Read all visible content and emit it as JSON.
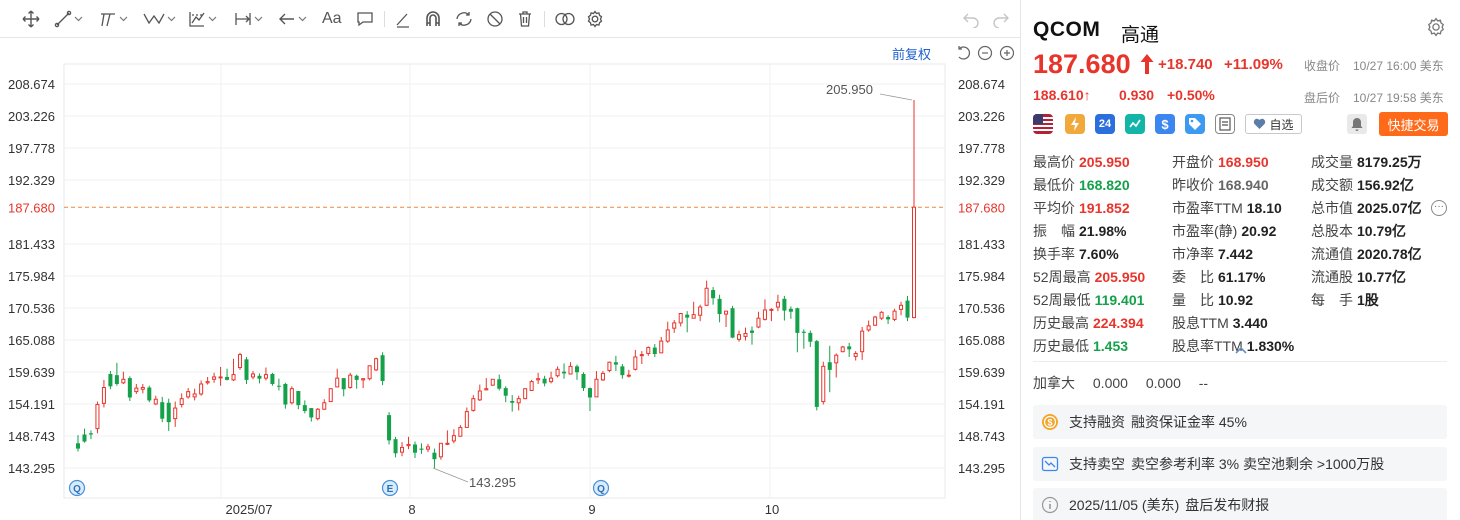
{
  "colors": {
    "up": "#e8352c",
    "down": "#14a14a",
    "accent": "#1f5fcc",
    "trade": "#ff6a1a"
  },
  "toolbar": {
    "icons": [
      "move-icon",
      "line-icon",
      "channel-icon",
      "wave-icon",
      "pattern-icon",
      "measure-icon",
      "arrow-icon",
      "text-icon",
      "comment-icon",
      "pen-icon",
      "magnet-icon",
      "sync-icon",
      "hide-icon",
      "delete-icon",
      "compare-icon",
      "gear-icon",
      "undo-icon",
      "redo-icon"
    ],
    "text_tool_label": "Aa"
  },
  "chart": {
    "adjust_label": "前复权",
    "y_ticks": [
      "208.674",
      "203.226",
      "197.778",
      "192.329",
      "187.680",
      "181.433",
      "175.984",
      "170.536",
      "165.088",
      "159.639",
      "154.191",
      "148.743",
      "143.295"
    ],
    "current_price": "187.680",
    "high_label": "205.950",
    "low_label": "143.295",
    "x_labels": [
      "2025/07",
      "8",
      "9",
      "10"
    ],
    "event_markers": [
      "Q",
      "E",
      "Q"
    ]
  },
  "chart_data": {
    "type": "candlestick",
    "x_labels": [
      "2025/07",
      "8",
      "9",
      "10"
    ],
    "ylim": [
      141,
      211
    ],
    "y_ticks": [
      208.674,
      203.226,
      197.778,
      192.329,
      187.68,
      181.433,
      175.984,
      170.536,
      165.088,
      159.639,
      154.191,
      148.743,
      143.295
    ],
    "reference_line": 187.68,
    "annotations": [
      {
        "text": "205.950",
        "value": 205.95
      },
      {
        "text": "143.295",
        "value": 143.295
      }
    ],
    "candles": [
      [
        147.5,
        146.6,
        148.9,
        146.1
      ],
      [
        149.0,
        147.8,
        150.0,
        147.6
      ],
      [
        149.2,
        149.0,
        149.7,
        148.2
      ],
      [
        150.0,
        154.1,
        154.6,
        149.2
      ],
      [
        154.3,
        157.0,
        158.3,
        153.6
      ],
      [
        159.3,
        157.2,
        159.8,
        156.7
      ],
      [
        159.1,
        157.6,
        161.2,
        157.3
      ],
      [
        157.8,
        158.4,
        159.7,
        157.6
      ],
      [
        158.6,
        155.3,
        158.9,
        154.7
      ],
      [
        156.3,
        156.9,
        157.6,
        155.9
      ],
      [
        156.7,
        157.0,
        157.6,
        156.0
      ],
      [
        157.0,
        154.8,
        157.3,
        154.5
      ],
      [
        154.2,
        155.0,
        155.6,
        154.0
      ],
      [
        154.5,
        151.7,
        155.4,
        151.1
      ],
      [
        154.4,
        151.1,
        155.1,
        149.6
      ],
      [
        151.7,
        153.5,
        154.6,
        150.3
      ],
      [
        154.1,
        155.1,
        156.0,
        153.6
      ],
      [
        155.4,
        156.3,
        156.9,
        155.1
      ],
      [
        155.4,
        155.9,
        156.8,
        154.8
      ],
      [
        155.9,
        157.6,
        158.2,
        155.6
      ],
      [
        157.8,
        158.0,
        158.8,
        157.5
      ],
      [
        158.4,
        158.8,
        159.5,
        157.8
      ],
      [
        158.7,
        158.8,
        160.5,
        157.3
      ],
      [
        158.8,
        158.3,
        160.2,
        158.2
      ],
      [
        158.3,
        159.2,
        161.9,
        158.1
      ],
      [
        160.4,
        162.6,
        162.9,
        160.0
      ],
      [
        161.8,
        158.3,
        162.2,
        157.6
      ],
      [
        158.8,
        159.3,
        159.8,
        158.4
      ],
      [
        159.0,
        158.5,
        159.4,
        157.7
      ],
      [
        158.6,
        159.2,
        160.4,
        158.2
      ],
      [
        159.3,
        157.6,
        159.5,
        157.3
      ],
      [
        157.3,
        157.2,
        158.5,
        156.5
      ],
      [
        157.6,
        154.1,
        157.8,
        153.4
      ],
      [
        154.4,
        156.8,
        157.2,
        154.1
      ],
      [
        156.4,
        154.0,
        156.4,
        153.3
      ],
      [
        154.0,
        153.0,
        154.8,
        152.6
      ],
      [
        153.5,
        151.9,
        153.5,
        151.2
      ],
      [
        151.7,
        153.3,
        153.5,
        151.4
      ],
      [
        153.3,
        154.4,
        155.0,
        153.2
      ],
      [
        154.6,
        156.8,
        156.8,
        154.6
      ],
      [
        157.1,
        158.6,
        160.2,
        157.1
      ],
      [
        158.6,
        156.7,
        158.6,
        155.5
      ],
      [
        157.0,
        159.1,
        159.5,
        156.8
      ],
      [
        159.0,
        158.3,
        159.2,
        156.8
      ],
      [
        158.3,
        158.5,
        158.6,
        156.9
      ],
      [
        158.5,
        160.7,
        160.7,
        158.2
      ],
      [
        160.0,
        161.9,
        162.1,
        159.8
      ],
      [
        162.5,
        158.1,
        163.0,
        157.4
      ],
      [
        152.3,
        148.0,
        152.8,
        147.3
      ],
      [
        148.2,
        145.8,
        148.6,
        145.1
      ],
      [
        146.0,
        146.8,
        147.7,
        145.3
      ],
      [
        147.1,
        147.3,
        148.6,
        146.5
      ],
      [
        147.3,
        145.9,
        147.8,
        145.0
      ],
      [
        146.6,
        146.4,
        147.5,
        145.7
      ],
      [
        146.5,
        146.9,
        147.4,
        146.0
      ],
      [
        145.9,
        144.8,
        146.6,
        143.3
      ],
      [
        145.2,
        147.5,
        147.5,
        144.7
      ],
      [
        147.5,
        147.5,
        149.7,
        147.2
      ],
      [
        147.9,
        148.8,
        149.9,
        147.5
      ],
      [
        148.7,
        150.2,
        150.6,
        148.7
      ],
      [
        150.2,
        152.9,
        153.6,
        150.2
      ],
      [
        153.1,
        155.1,
        155.7,
        152.9
      ],
      [
        154.9,
        156.4,
        157.5,
        154.7
      ],
      [
        156.6,
        156.8,
        158.6,
        156.5
      ],
      [
        157.4,
        158.4,
        158.4,
        157.3
      ],
      [
        158.4,
        156.8,
        159.2,
        156.5
      ],
      [
        156.9,
        155.6,
        157.2,
        154.5
      ],
      [
        154.7,
        154.4,
        155.7,
        152.9
      ],
      [
        154.4,
        155.1,
        155.6,
        153.1
      ],
      [
        155.1,
        156.8,
        156.8,
        155.0
      ],
      [
        156.5,
        158.0,
        158.3,
        156.4
      ],
      [
        158.3,
        158.5,
        159.5,
        157.6
      ],
      [
        158.5,
        157.7,
        159.0,
        157.2
      ],
      [
        158.0,
        158.6,
        159.7,
        157.7
      ],
      [
        159.0,
        160.1,
        160.6,
        158.7
      ],
      [
        159.7,
        159.4,
        161.1,
        158.5
      ],
      [
        159.3,
        160.6,
        161.3,
        159.3
      ],
      [
        160.6,
        159.6,
        160.9,
        158.3
      ],
      [
        159.3,
        156.9,
        159.6,
        156.4
      ],
      [
        156.9,
        155.3,
        157.0,
        153.0
      ],
      [
        155.4,
        158.4,
        159.8,
        155.4
      ],
      [
        158.3,
        159.4,
        159.8,
        158.1
      ],
      [
        159.9,
        161.3,
        161.4,
        159.6
      ],
      [
        161.3,
        160.9,
        162.4,
        159.8
      ],
      [
        160.6,
        159.1,
        161.0,
        158.5
      ],
      [
        159.0,
        159.1,
        160.0,
        158.7
      ],
      [
        160.1,
        162.2,
        163.4,
        159.9
      ],
      [
        162.6,
        162.6,
        163.2,
        161.0
      ],
      [
        162.8,
        163.8,
        164.0,
        162.4
      ],
      [
        163.8,
        162.7,
        164.4,
        162.2
      ],
      [
        162.9,
        164.9,
        165.6,
        162.9
      ],
      [
        164.9,
        166.8,
        168.2,
        164.6
      ],
      [
        167.1,
        168.0,
        168.5,
        166.3
      ],
      [
        168.0,
        169.6,
        169.7,
        167.4
      ],
      [
        169.4,
        168.9,
        170.0,
        166.4
      ],
      [
        168.8,
        169.4,
        171.6,
        168.8
      ],
      [
        169.3,
        170.7,
        171.1,
        168.3
      ],
      [
        171.0,
        173.9,
        175.2,
        170.9
      ],
      [
        173.6,
        172.2,
        174.1,
        171.1
      ],
      [
        172.1,
        169.5,
        172.8,
        168.1
      ],
      [
        169.5,
        170.0,
        170.0,
        167.3
      ],
      [
        170.5,
        165.5,
        170.9,
        165.4
      ],
      [
        165.2,
        166.0,
        166.7,
        164.8
      ],
      [
        165.7,
        166.2,
        167.2,
        165.0
      ],
      [
        166.7,
        166.3,
        167.4,
        164.3
      ],
      [
        167.3,
        168.8,
        169.9,
        167.1
      ],
      [
        168.6,
        170.2,
        172.0,
        168.4
      ],
      [
        170.2,
        170.3,
        170.5,
        168.3
      ],
      [
        170.7,
        171.5,
        172.8,
        170.0
      ],
      [
        172.1,
        170.1,
        172.6,
        168.4
      ],
      [
        170.4,
        169.9,
        170.8,
        168.7
      ],
      [
        170.5,
        166.3,
        170.6,
        163.0
      ],
      [
        166.5,
        166.3,
        166.9,
        163.6
      ],
      [
        166.3,
        164.8,
        166.7,
        163.9
      ],
      [
        164.9,
        153.7,
        165.1,
        153.1
      ],
      [
        154.6,
        160.6,
        161.4,
        154.1
      ],
      [
        161.3,
        160.0,
        164.1,
        156.2
      ],
      [
        161.2,
        162.5,
        162.8,
        158.7
      ],
      [
        163.1,
        163.9,
        164.1,
        163.0
      ],
      [
        164.0,
        163.5,
        164.6,
        162.2
      ],
      [
        162.3,
        162.8,
        163.2,
        161.6
      ],
      [
        163.1,
        166.6,
        167.3,
        161.7
      ],
      [
        166.8,
        167.5,
        168.4,
        166.5
      ],
      [
        167.6,
        169.0,
        169.2,
        167.5
      ],
      [
        168.8,
        169.8,
        170.0,
        168.5
      ],
      [
        169.0,
        168.6,
        169.3,
        167.8
      ],
      [
        168.6,
        170.0,
        170.4,
        168.3
      ],
      [
        170.3,
        171.0,
        171.6,
        169.3
      ],
      [
        171.8,
        168.9,
        172.6,
        168.3
      ],
      [
        168.9,
        187.7,
        205.95,
        168.8
      ]
    ]
  },
  "panel": {
    "symbol": "QCOM",
    "name": "高通",
    "price": "187.680",
    "change": "+18.740",
    "change_pct": "+11.09%",
    "close_label": "收盘价",
    "close_time": "10/27 16:00 美东",
    "ah_price": "188.610",
    "ah_change": "0.930",
    "ah_change_pct": "+0.50%",
    "ah_label": "盘后价",
    "ah_time": "10/27 19:58 美东",
    "badge_24": "24",
    "watch_label": "自选",
    "trade_label": "快捷交易",
    "stats": [
      [
        {
          "k": "最高价",
          "v": "205.950",
          "c": "red"
        },
        {
          "k": "开盘价",
          "v": "168.950",
          "c": "red"
        },
        {
          "k": "成交量",
          "v": "8179.25万",
          "c": ""
        }
      ],
      [
        {
          "k": "最低价",
          "v": "168.820",
          "c": "green"
        },
        {
          "k": "昨收价",
          "v": "168.940",
          "c": "grey"
        },
        {
          "k": "成交额",
          "v": "156.92亿",
          "c": ""
        }
      ],
      [
        {
          "k": "平均价",
          "v": "191.852",
          "c": "red"
        },
        {
          "k": "市盈率TTM",
          "v": "18.10",
          "c": ""
        },
        {
          "k": "总市值",
          "v": "2025.07亿",
          "c": ""
        }
      ],
      [
        {
          "k": "振　幅",
          "v": "21.98%",
          "c": ""
        },
        {
          "k": "市盈率(静)",
          "v": "20.92",
          "c": ""
        },
        {
          "k": "总股本",
          "v": "10.79亿",
          "c": ""
        }
      ],
      [
        {
          "k": "换手率",
          "v": "7.60%",
          "c": ""
        },
        {
          "k": "市净率",
          "v": "7.442",
          "c": ""
        },
        {
          "k": "流通值",
          "v": "2020.78亿",
          "c": ""
        }
      ],
      [
        {
          "k": "52周最高",
          "v": "205.950",
          "c": "red"
        },
        {
          "k": "委　比",
          "v": "61.17%",
          "c": ""
        },
        {
          "k": "流通股",
          "v": "10.77亿",
          "c": ""
        }
      ],
      [
        {
          "k": "52周最低",
          "v": "119.401",
          "c": "green"
        },
        {
          "k": "量　比",
          "v": "10.92",
          "c": ""
        },
        {
          "k": "每　手",
          "v": "1股",
          "c": ""
        }
      ],
      [
        {
          "k": "历史最高",
          "v": "224.394",
          "c": "red"
        },
        {
          "k": "股息TTM",
          "v": "3.440",
          "c": ""
        },
        {
          "k": "",
          "v": "",
          "c": ""
        }
      ],
      [
        {
          "k": "历史最低",
          "v": "1.453",
          "c": "green"
        },
        {
          "k": "股息率TTM",
          "v": "1.830%",
          "c": ""
        },
        {
          "k": "",
          "v": "",
          "c": ""
        }
      ]
    ],
    "canada": {
      "label": "加拿大",
      "v1": "0.000",
      "v2": "0.000",
      "v3": "--"
    },
    "margin": {
      "title": "支持融资",
      "detail": "融资保证金率 45%"
    },
    "short": {
      "title": "支持卖空",
      "detail": "卖空参考利率 3% 卖空池剩余 >1000万股"
    },
    "earnings": {
      "date": "2025/11/05 (美东)",
      "detail": "盘后发布财报"
    }
  }
}
